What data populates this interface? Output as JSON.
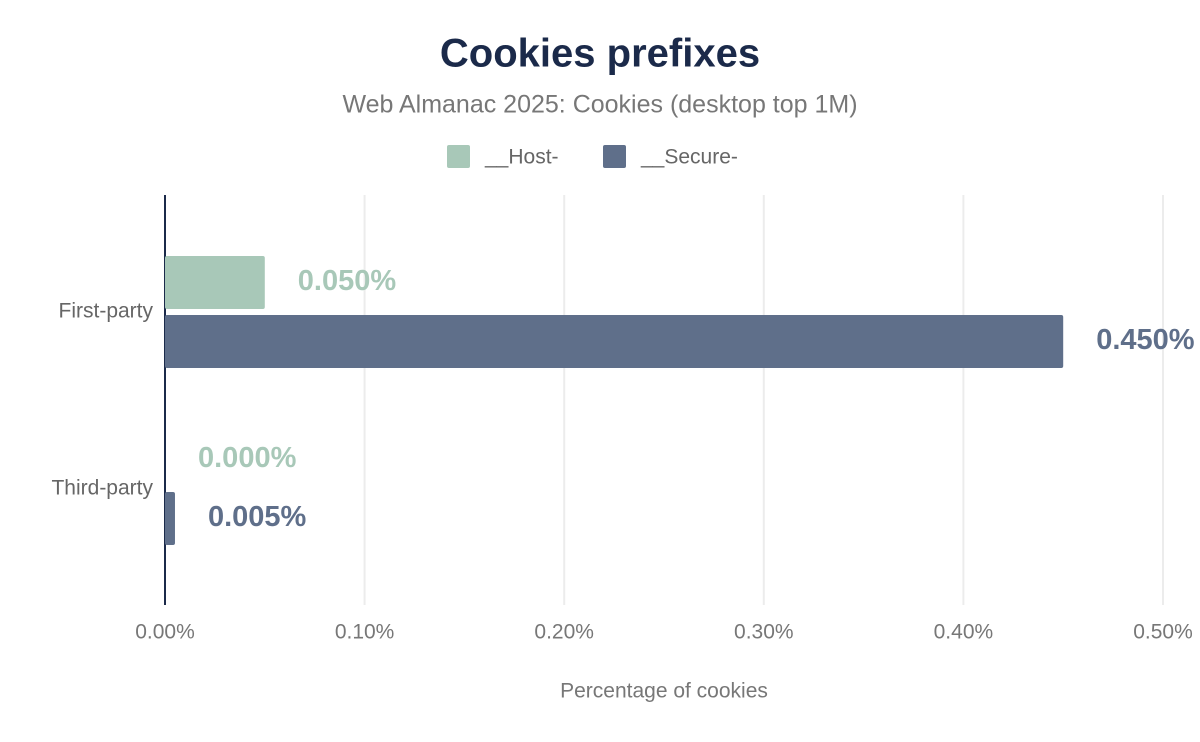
{
  "chart_data": {
    "type": "hbar",
    "title": "Cookies prefixes",
    "subtitle": "Web Almanac 2025: Cookies (desktop top 1M)",
    "x_label": "Percentage of cookies",
    "categories": [
      "First-party",
      "Third-party"
    ],
    "series": [
      {
        "name": "__Host-",
        "color": "#a8c8b8",
        "values": [
          0.05,
          0
        ],
        "value_labels": [
          "0.050%",
          "0.000%"
        ]
      },
      {
        "name": "__Secure-",
        "color": "#5f6f8a",
        "values": [
          0.45,
          0.005
        ],
        "value_labels": [
          "0.450%",
          "0.005%"
        ]
      }
    ],
    "xlim": [
      0,
      0.5
    ],
    "xticks": [
      {
        "value": 0,
        "label": "0.00%"
      },
      {
        "value": 0.1,
        "label": "0.10%"
      },
      {
        "value": 0.2,
        "label": "0.20%"
      },
      {
        "value": 0.3,
        "label": "0.30%"
      },
      {
        "value": 0.4,
        "label": "0.40%"
      },
      {
        "value": 0.5,
        "label": "0.50%"
      }
    ],
    "grid": true,
    "legend": "top"
  }
}
